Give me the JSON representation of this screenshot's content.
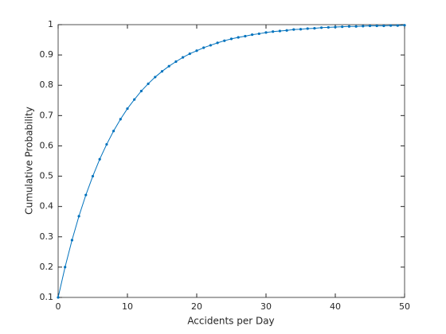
{
  "chart_data": {
    "type": "line",
    "xlabel": "Accidents per Day",
    "ylabel": "Cumulative Probability",
    "x": [
      0,
      1,
      2,
      3,
      4,
      5,
      6,
      7,
      8,
      9,
      10,
      11,
      12,
      13,
      14,
      15,
      16,
      17,
      18,
      19,
      20,
      21,
      22,
      23,
      24,
      25,
      26,
      27,
      28,
      29,
      30,
      31,
      32,
      33,
      34,
      35,
      36,
      37,
      38,
      39,
      40,
      41,
      42,
      43,
      44,
      45,
      46,
      47,
      48,
      49,
      50
    ],
    "series": [
      {
        "color": "#0072bd",
        "values": [
          0.1,
          0.2,
          0.289,
          0.368,
          0.438,
          0.5,
          0.556,
          0.605,
          0.649,
          0.688,
          0.723,
          0.753,
          0.781,
          0.805,
          0.827,
          0.846,
          0.863,
          0.878,
          0.892,
          0.904,
          0.914,
          0.924,
          0.932,
          0.94,
          0.947,
          0.953,
          0.958,
          0.962,
          0.967,
          0.97,
          0.974,
          0.977,
          0.979,
          0.981,
          0.984,
          0.985,
          0.987,
          0.988,
          0.99,
          0.991,
          0.992,
          0.993,
          0.994,
          0.994,
          0.995,
          0.996,
          0.996,
          0.996,
          0.997,
          0.997,
          0.998
        ]
      }
    ],
    "xlim": [
      0,
      50
    ],
    "xticks": [
      0,
      10,
      20,
      30,
      40,
      50
    ],
    "ylim": [
      0.1,
      1
    ],
    "yticks": [
      0.1,
      0.2,
      0.3,
      0.4,
      0.5,
      0.6,
      0.7,
      0.8,
      0.9,
      1
    ]
  }
}
